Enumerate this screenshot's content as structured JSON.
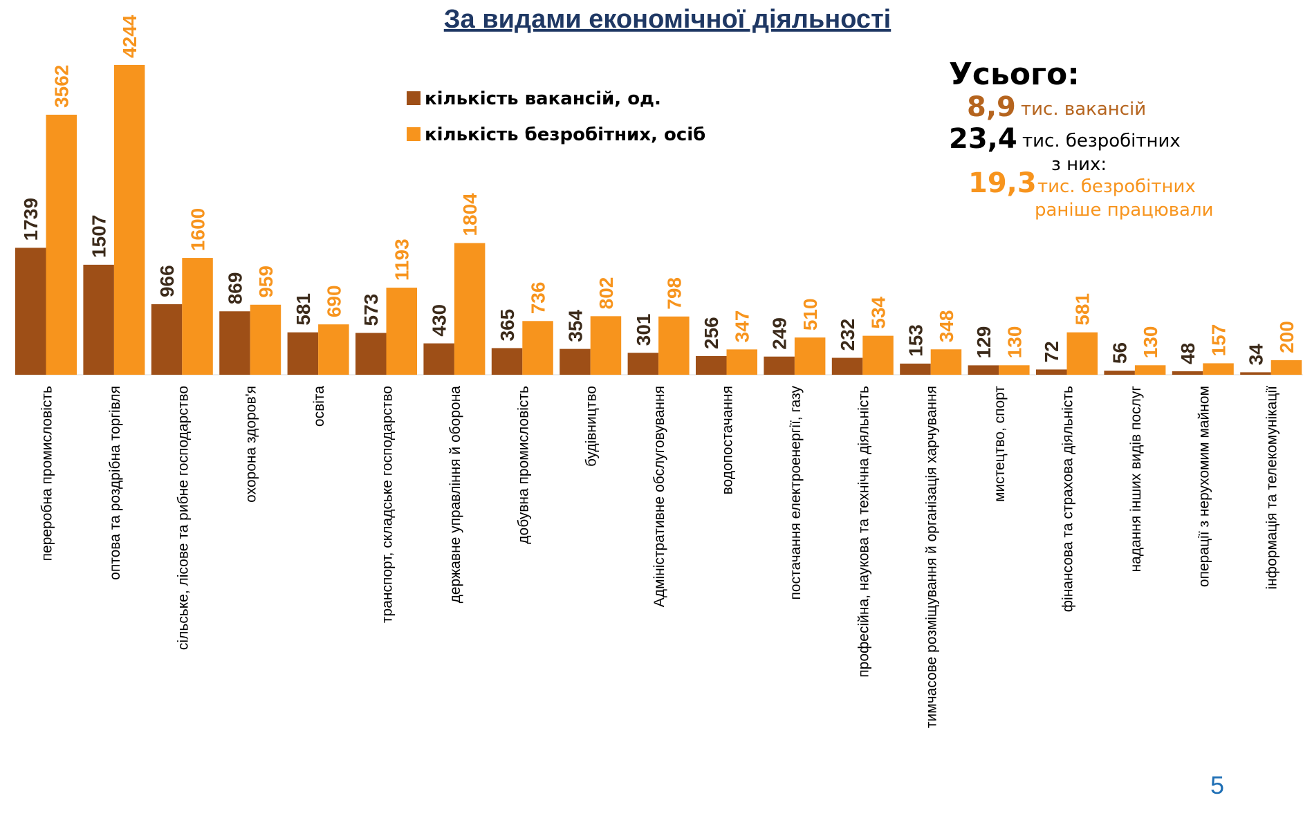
{
  "chart_data": {
    "type": "bar",
    "title": "За видами економічної діяльності",
    "categories": [
      "переробна промисловість",
      "оптова та роздрібна торгівля",
      "сільське, лісове та рибне господарство",
      "охорона здоров'я",
      "освіта",
      "транспорт, складське господарство",
      "державне управління й оборона",
      "добувна промисловість",
      "будівництво",
      "Адміністративне обслуговування",
      "водопостачання",
      "постачання електроенергії, газу",
      "професійна, наукова та технічна діяльність",
      "тимчасове розміщування й організація харчування",
      "мистецтво, спорт",
      "фінансова та страхова діяльність",
      "надання інших видів послуг",
      "операції з нерухомим майном",
      "інформація та телекомунікації"
    ],
    "series": [
      {
        "name": "кількість вакансій, од.",
        "color": "#9e4f17",
        "values": [
          1739,
          1507,
          966,
          869,
          581,
          573,
          430,
          365,
          354,
          301,
          256,
          249,
          232,
          153,
          129,
          72,
          56,
          48,
          34
        ]
      },
      {
        "name": "кількість безробітних, осіб",
        "color": "#f7941d",
        "values": [
          3562,
          4244,
          1600,
          959,
          690,
          1193,
          1804,
          736,
          802,
          798,
          347,
          510,
          534,
          348,
          130,
          581,
          130,
          157,
          200
        ]
      }
    ],
    "ylim": [
      0,
      4300
    ],
    "totals": {
      "heading": "Усього:",
      "vacancies": "8,9",
      "vacancies_unit": "тис. вакансій",
      "unemployed": "23,4",
      "unemployed_unit": "тис. безробітних",
      "of_them": "з них:",
      "worked": "19,3",
      "worked_unit": "тис. безробітних",
      "worked_note": "раніше працювали"
    },
    "page_number": "5"
  }
}
